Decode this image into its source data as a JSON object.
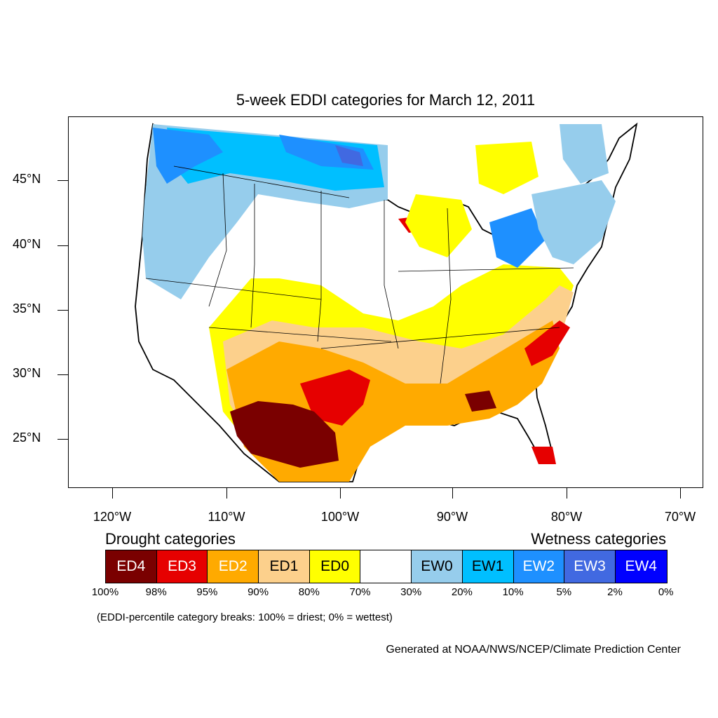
{
  "title": "5-week EDDI categories for March 12, 2011",
  "map": {
    "lat_labels": [
      "45°N",
      "40°N",
      "35°N",
      "30°N",
      "25°N"
    ],
    "lon_labels": [
      "120°W",
      "110°W",
      "100°W",
      "90°W",
      "80°W",
      "70°W"
    ],
    "region": "Contiguous United States",
    "colors": {
      "ED4": "#7a0000",
      "ED3": "#e60000",
      "ED2": "#ffaa00",
      "ED1": "#fcd08c",
      "ED0": "#ffff00",
      "neutral": "#ffffff",
      "EW0": "#96cdec",
      "EW1": "#00bfff",
      "EW2": "#1e90ff",
      "EW3": "#4169e1",
      "EW4": "#0000ff"
    }
  },
  "legend": {
    "drought_heading": "Drought categories",
    "wetness_heading": "Wetness categories",
    "categories": [
      {
        "label": "ED4",
        "color": "#7a0000",
        "text_color": "#ffffff"
      },
      {
        "label": "ED3",
        "color": "#e60000",
        "text_color": "#ffffff"
      },
      {
        "label": "ED2",
        "color": "#ffaa00",
        "text_color": "#ffffff"
      },
      {
        "label": "ED1",
        "color": "#fcd08c",
        "text_color": "#000000"
      },
      {
        "label": "ED0",
        "color": "#ffff00",
        "text_color": "#000000"
      },
      {
        "label": "",
        "color": "#ffffff",
        "text_color": "#000000"
      },
      {
        "label": "EW0",
        "color": "#96cdec",
        "text_color": "#000000"
      },
      {
        "label": "EW1",
        "color": "#00bfff",
        "text_color": "#000000"
      },
      {
        "label": "EW2",
        "color": "#1e90ff",
        "text_color": "#ffffff"
      },
      {
        "label": "EW3",
        "color": "#4169e1",
        "text_color": "#ffffff"
      },
      {
        "label": "EW4",
        "color": "#0000ff",
        "text_color": "#ffffff"
      }
    ],
    "percent_breaks": [
      "100%",
      "98%",
      "95%",
      "90%",
      "80%",
      "70%",
      "30%",
      "20%",
      "10%",
      "5%",
      "2%",
      "0%"
    ],
    "note": "(EDDI-percentile category breaks: 100% = driest; 0% = wettest)"
  },
  "credit": "Generated at NOAA/NWS/NCEP/Climate Prediction Center"
}
